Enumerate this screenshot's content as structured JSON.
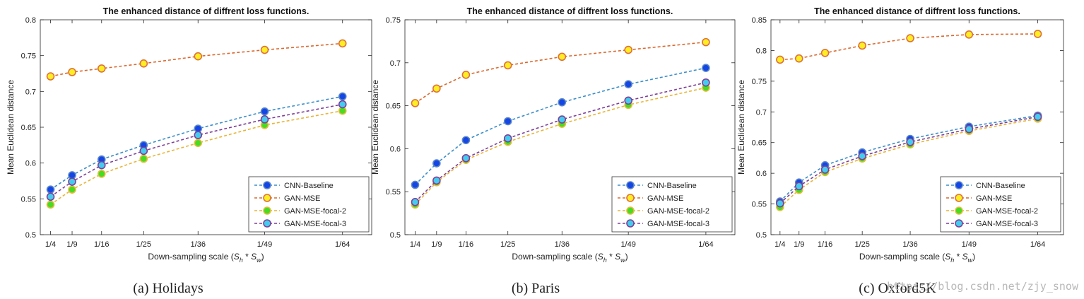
{
  "chart_data": [
    {
      "type": "line",
      "title": "The enhanced distance of diffrent loss functions.",
      "xlabel_prefix": "Down-sampling scale (",
      "xlabel_s1": "S",
      "xlabel_sub1": "h",
      "xlabel_mid": " * ",
      "xlabel_s2": "S",
      "xlabel_sub2": "w",
      "xlabel_suffix": ")",
      "ylabel": "Mean Euclidean distance",
      "categories": [
        "1/4",
        "1/9",
        "1/16",
        "1/25",
        "1/36",
        "1/49",
        "1/64"
      ],
      "x": [
        4,
        9,
        16,
        25,
        36,
        49,
        64
      ],
      "ylim": [
        0.5,
        0.8
      ],
      "yticks": [
        "0.5",
        "0.55",
        "0.6",
        "0.65",
        "0.7",
        "0.75",
        "0.8"
      ],
      "caption": "(a)  Holidays",
      "series": [
        {
          "name": "CNN-Baseline",
          "values": [
            0.563,
            0.583,
            0.605,
            0.625,
            0.648,
            0.672,
            0.693
          ]
        },
        {
          "name": "GAN-MSE",
          "values": [
            0.721,
            0.727,
            0.732,
            0.739,
            0.749,
            0.758,
            0.767
          ]
        },
        {
          "name": "GAN-MSE-focal-2",
          "values": [
            0.542,
            0.563,
            0.585,
            0.606,
            0.628,
            0.653,
            0.673
          ]
        },
        {
          "name": "GAN-MSE-focal-3",
          "values": [
            0.553,
            0.574,
            0.597,
            0.617,
            0.639,
            0.661,
            0.682
          ]
        }
      ]
    },
    {
      "type": "line",
      "title": "The enhanced distance of diffrent loss functions.",
      "xlabel_prefix": "Down-sampling scale (",
      "xlabel_s1": "S",
      "xlabel_sub1": "h",
      "xlabel_mid": " * ",
      "xlabel_s2": "S",
      "xlabel_sub2": "w",
      "xlabel_suffix": ")",
      "ylabel": "Mean Euclidean distance",
      "categories": [
        "1/4",
        "1/9",
        "1/16",
        "1/25",
        "1/36",
        "1/49",
        "1/64"
      ],
      "x": [
        4,
        9,
        16,
        25,
        36,
        49,
        64
      ],
      "ylim": [
        0.5,
        0.75
      ],
      "yticks": [
        "0.5",
        "0.55",
        "0.6",
        "0.65",
        "0.7",
        "0.75"
      ],
      "caption": "(b)  Paris",
      "series": [
        {
          "name": "CNN-Baseline",
          "values": [
            0.558,
            0.583,
            0.61,
            0.632,
            0.654,
            0.675,
            0.694
          ]
        },
        {
          "name": "GAN-MSE",
          "values": [
            0.653,
            0.67,
            0.686,
            0.697,
            0.707,
            0.715,
            0.724
          ]
        },
        {
          "name": "GAN-MSE-focal-2",
          "values": [
            0.535,
            0.561,
            0.587,
            0.608,
            0.629,
            0.651,
            0.671
          ]
        },
        {
          "name": "GAN-MSE-focal-3",
          "values": [
            0.538,
            0.563,
            0.589,
            0.612,
            0.634,
            0.656,
            0.677
          ]
        }
      ]
    },
    {
      "type": "line",
      "title": "The enhanced distance of diffrent loss functions.",
      "xlabel_prefix": "Down-sampling scale (",
      "xlabel_s1": "S",
      "xlabel_sub1": "h",
      "xlabel_mid": " * ",
      "xlabel_s2": "S",
      "xlabel_sub2": "w",
      "xlabel_suffix": ")",
      "ylabel": "Mean Euclidean distance",
      "categories": [
        "1/4",
        "1/9",
        "1/16",
        "1/25",
        "1/36",
        "1/49",
        "1/64"
      ],
      "x": [
        4,
        9,
        16,
        25,
        36,
        49,
        64
      ],
      "ylim": [
        0.5,
        0.85
      ],
      "yticks": [
        "0.5",
        "0.55",
        "0.6",
        "0.65",
        "0.7",
        "0.75",
        "0.8",
        "0.85"
      ],
      "caption": "(c)  Oxford5K",
      "series": [
        {
          "name": "CNN-Baseline",
          "values": [
            0.554,
            0.585,
            0.613,
            0.634,
            0.656,
            0.676,
            0.694
          ]
        },
        {
          "name": "GAN-MSE",
          "values": [
            0.785,
            0.787,
            0.796,
            0.808,
            0.82,
            0.826,
            0.827
          ]
        },
        {
          "name": "GAN-MSE-focal-2",
          "values": [
            0.545,
            0.573,
            0.602,
            0.624,
            0.647,
            0.669,
            0.689
          ]
        },
        {
          "name": "GAN-MSE-focal-3",
          "values": [
            0.551,
            0.579,
            0.606,
            0.628,
            0.651,
            0.672,
            0.692
          ]
        }
      ]
    }
  ],
  "series_colors": [
    "#3b8ec9",
    "#d9682e",
    "#e8b437",
    "#7e3f97"
  ],
  "marker_fills": [
    "#1446e6",
    "#ffee22",
    "#44dd22",
    "#44ccee"
  ],
  "marker_edges": [
    "#5a86c7",
    "#de6f3c",
    "#e9bc3e",
    "#7e3f97"
  ],
  "watermark": "https://blog.csdn.net/zjy_snow"
}
